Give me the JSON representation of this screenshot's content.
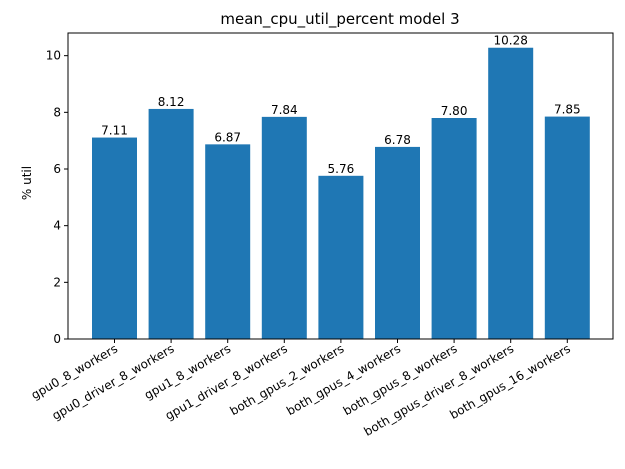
{
  "chart_data": {
    "type": "bar",
    "title": "mean_cpu_util_percent model 3",
    "xlabel": "",
    "ylabel": "% util",
    "categories": [
      "gpu0_8_workers",
      "gpu0_driver_8_workers",
      "gpu1_8_workers",
      "gpu1_driver_8_workers",
      "both_gpus_2_workers",
      "both_gpus_4_workers",
      "both_gpus_8_workers",
      "both_gpus_driver_8_workers",
      "both_gpus_16_workers"
    ],
    "values": [
      7.11,
      8.12,
      6.87,
      7.84,
      5.76,
      6.78,
      7.8,
      10.28,
      7.85
    ],
    "value_labels": [
      "7.11",
      "8.12",
      "6.87",
      "7.84",
      "5.76",
      "6.78",
      "7.80",
      "10.28",
      "7.85"
    ],
    "ylim": [
      0,
      10.8
    ],
    "yticks": [
      0,
      2,
      4,
      6,
      8,
      10
    ],
    "grid": false,
    "legend": "none",
    "bar_color": "#1f77b4"
  }
}
